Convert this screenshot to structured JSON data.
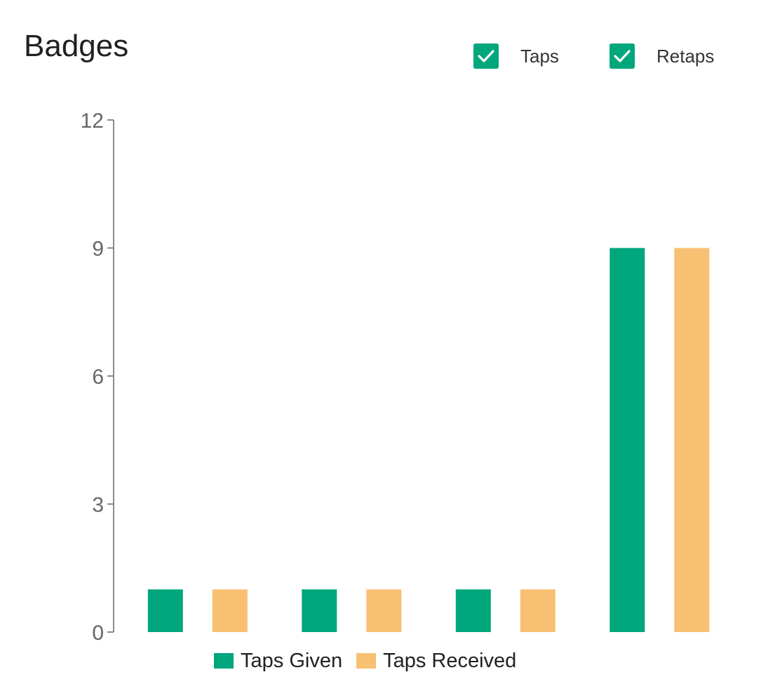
{
  "header": {
    "title": "Badges"
  },
  "filters": {
    "taps": {
      "label": "Taps",
      "checked": true
    },
    "retaps": {
      "label": "Retaps",
      "checked": true
    }
  },
  "colors": {
    "taps_given": "#00a67c",
    "taps_received": "#f8c073",
    "checkbox": "#00a67c",
    "axis": "#666666"
  },
  "chart_data": {
    "type": "bar",
    "title": "",
    "xlabel": "",
    "ylabel": "",
    "ylim": [
      0,
      12
    ],
    "y_ticks": [
      0,
      3,
      6,
      9,
      12
    ],
    "categories": [
      "",
      "",
      "",
      ""
    ],
    "series": [
      {
        "name": "Taps Given",
        "color": "#00a67c",
        "values": [
          1,
          1,
          1,
          9
        ]
      },
      {
        "name": "Taps Received",
        "color": "#f8c073",
        "values": [
          1,
          1,
          1,
          9
        ]
      }
    ],
    "legend_position": "bottom",
    "grid": false
  }
}
